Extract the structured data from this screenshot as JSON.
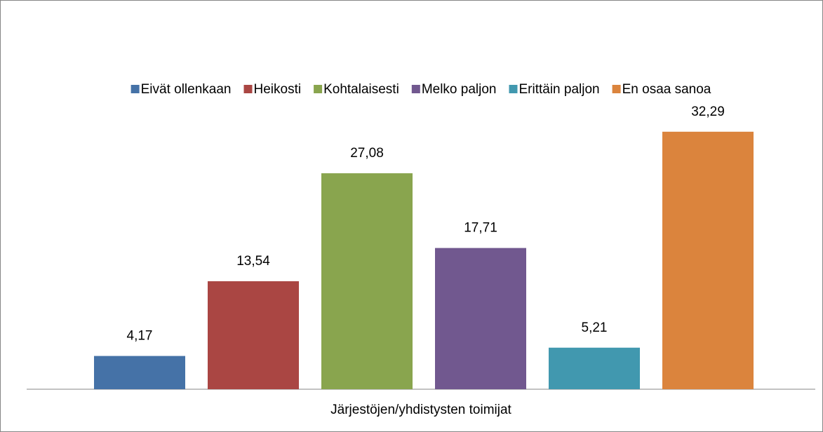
{
  "chart_data": {
    "type": "bar",
    "categories": [
      "Järjestöjen/yhdistysten toimijat"
    ],
    "series": [
      {
        "name": "Eivät ollenkaan",
        "color": "#4572a7",
        "values": [
          4.17
        ],
        "value_labels": [
          "4,17"
        ]
      },
      {
        "name": "Heikosti",
        "color": "#aa4643",
        "values": [
          13.54
        ],
        "value_labels": [
          "13,54"
        ]
      },
      {
        "name": "Kohtalaisesti",
        "color": "#89a54e",
        "values": [
          27.08
        ],
        "value_labels": [
          "27,08"
        ]
      },
      {
        "name": "Melko paljon",
        "color": "#71588f",
        "values": [
          17.71
        ],
        "value_labels": [
          "17,71"
        ]
      },
      {
        "name": "Erittäin paljon",
        "color": "#4198af",
        "values": [
          5.21
        ],
        "value_labels": [
          "5,21"
        ]
      },
      {
        "name": "En osaa sanoa",
        "color": "#db843d",
        "values": [
          32.29
        ],
        "value_labels": [
          "32,29"
        ]
      }
    ],
    "ylim": [
      0,
      35
    ],
    "legend": "top"
  }
}
